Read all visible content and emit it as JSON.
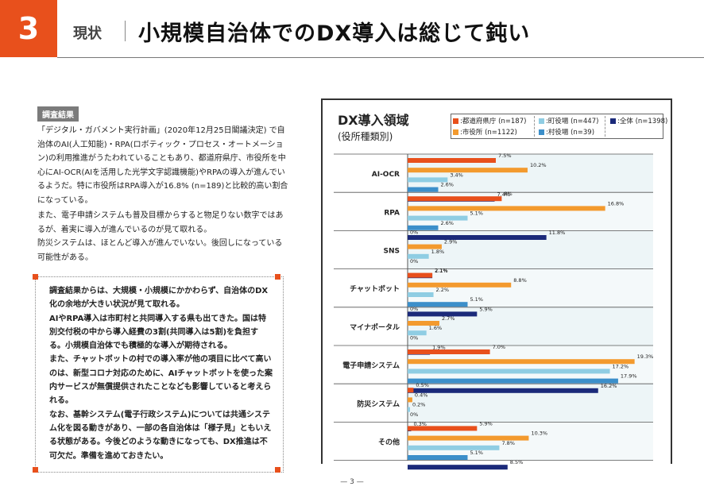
{
  "header": {
    "number": "3",
    "subtitle": "現状",
    "title": "小規模自治体でのDX導入は総じて鈍い"
  },
  "survey": {
    "label": "調査結果",
    "paragraphs": [
      "「デジタル・ガバメント実行計画」(2020年12月25日閣議決定) で自治体のAI(人工知能)・RPA(ロボティック・プロセス・オートメーション)の利用推進がうたわれていることもあり、都道府県庁、市役所を中心にAI-OCR(AIを活用した光学文字認識機能)やRPAの導入が進んでいるようだ。特に市役所はRPA導入が16.8% (n=189)と比較的高い割合になっている。",
      "また、電子申請システムも普及目標からすると物足りない数字ではあるが、着実に導入が進んでいるのが見て取れる。",
      "防災システムは、ほとんど導入が進んでいない。後回しになっている可能性がある。"
    ]
  },
  "boxed": {
    "paragraphs": [
      "調査結果からは、大規模・小規模にかかわらず、自治体のDX化の余地が大きい状況が見て取れる。",
      "AIやRPA導入は市町村と共同導入する県も出てきた。国は特別交付税の中から導入経費の3割(共同導入は5割)を負担する。小規模自治体でも積極的な導入が期待される。",
      "また、チャットボットの村での導入率が他の項目に比べて高いのは、新型コロナ対応のために、AIチャットボットを使った案内サービスが無償提供されたことなども影響していると考えられる。",
      "なお、基幹システム(電子行政システム)については共通システム化を図る動きがあり、一部の各自治体は「様子見」ともいえる状態がある。今後どのような動きになっても、DX推進は不可欠だ。準備を進めておきたい。"
    ]
  },
  "chart_data": {
    "type": "bar",
    "orientation": "horizontal",
    "title": "DX導入領域",
    "subtitle": "(役所種類別)",
    "categories": [
      "AI-OCR",
      "RPA",
      "SNS",
      "チャットボット",
      "マイナポータル",
      "電子申請システム",
      "防災システム",
      "その他"
    ],
    "series": [
      {
        "name": "都道府県庁 (n=187)",
        "color": "#e8501c",
        "values": [
          7.5,
          8,
          0,
          2.1,
          0,
          7.0,
          0.5,
          5.9
        ],
        "labels": [
          "7.5%",
          "8%",
          "0%",
          "2.1%",
          "0%",
          "7.0%",
          "0.5%",
          "5.9%"
        ]
      },
      {
        "name": "市役所 (n=1122)",
        "color": "#f39a2e",
        "values": [
          10.2,
          16.8,
          2.9,
          8.8,
          2.7,
          19.3,
          0.4,
          10.3
        ],
        "labels": [
          "10.2%",
          "16.8%",
          "2.9%",
          "8.8%",
          "2.7%",
          "19.3%",
          "0.4%",
          "10.3%"
        ]
      },
      {
        "name": "町役場 (n=447)",
        "color": "#8fcde3",
        "values": [
          3.4,
          5.1,
          1.8,
          2.2,
          1.6,
          17.2,
          0.2,
          7.8
        ],
        "labels": [
          "3.4%",
          "5.1%",
          "1.8%",
          "2.2%",
          "1.6%",
          "17.2%",
          "0.2%",
          "7.8%"
        ]
      },
      {
        "name": "村役場 (n=39)",
        "color": "#3c8fca",
        "values": [
          2.6,
          2.6,
          0,
          5.1,
          0,
          17.9,
          0,
          5.1
        ],
        "labels": [
          "2.6%",
          "2.6%",
          "0%",
          "5.1%",
          "0%",
          "17.9%",
          "0%",
          "5.1%"
        ]
      },
      {
        "name": "全体 (n=1398)",
        "color": "#1b2a7a",
        "values": [
          7.4,
          11.8,
          2.1,
          5.9,
          1.9,
          16.2,
          0.3,
          8.5
        ],
        "labels": [
          "7.4%",
          "11.8%",
          "2.1%",
          "5.9%",
          "1.9%",
          "16.2%",
          "0.3%",
          "8.5%"
        ]
      }
    ],
    "legend_order": [
      0,
      2,
      4,
      1,
      3
    ],
    "xlim": [
      0,
      20
    ],
    "grid": false,
    "legend_position": "top-right"
  },
  "footer": {
    "page": "— 3 —"
  }
}
